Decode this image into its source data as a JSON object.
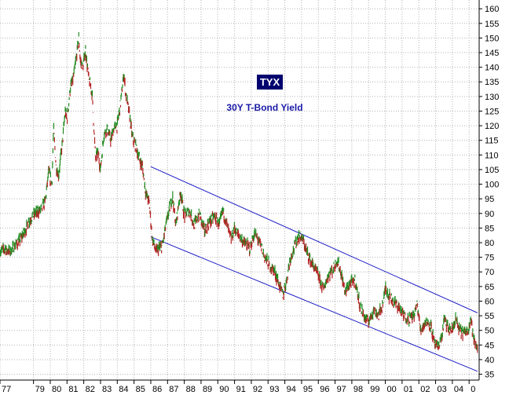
{
  "chart_data": {
    "type": "line",
    "title": "TYX",
    "subtitle": "30Y T-Bond Yield",
    "xlabel": "",
    "ylabel": "",
    "ylim": [
      33,
      163
    ],
    "xlim": [
      1977.0,
      2005.6
    ],
    "y_ticks": [
      35,
      40,
      45,
      50,
      55,
      60,
      65,
      70,
      75,
      80,
      85,
      90,
      95,
      100,
      105,
      110,
      115,
      120,
      125,
      130,
      135,
      140,
      145,
      150,
      155,
      160
    ],
    "x_ticks": [
      {
        "label": "77",
        "x": 1977.0
      },
      {
        "label": "79",
        "x": 1979.0
      },
      {
        "label": "80",
        "x": 1980.0
      },
      {
        "label": "81",
        "x": 1981.0
      },
      {
        "label": "82",
        "x": 1982.0
      },
      {
        "label": "83",
        "x": 1983.0
      },
      {
        "label": "84",
        "x": 1984.0
      },
      {
        "label": "85",
        "x": 1985.0
      },
      {
        "label": "86",
        "x": 1986.0
      },
      {
        "label": "87",
        "x": 1987.0
      },
      {
        "label": "88",
        "x": 1988.0
      },
      {
        "label": "89",
        "x": 1989.0
      },
      {
        "label": "90",
        "x": 1990.0
      },
      {
        "label": "91",
        "x": 1991.0
      },
      {
        "label": "92",
        "x": 1992.0
      },
      {
        "label": "93",
        "x": 1993.0
      },
      {
        "label": "94",
        "x": 1994.0
      },
      {
        "label": "95",
        "x": 1995.0
      },
      {
        "label": "96",
        "x": 1996.0
      },
      {
        "label": "97",
        "x": 1997.0
      },
      {
        "label": "98",
        "x": 1998.0
      },
      {
        "label": "99",
        "x": 1999.0
      },
      {
        "label": "00",
        "x": 2000.0
      },
      {
        "label": "01",
        "x": 2001.0
      },
      {
        "label": "02",
        "x": 2002.0
      },
      {
        "label": "03",
        "x": 2003.0
      },
      {
        "label": "04",
        "x": 2004.0
      },
      {
        "label": "0",
        "x": 2005.0
      }
    ],
    "grid": true,
    "series": [
      {
        "color_up": "#1f8a1f",
        "color_down": "#b22222",
        "x": [
          1977.0,
          1977.3,
          1977.6,
          1977.9,
          1978.2,
          1978.5,
          1978.8,
          1979.1,
          1979.4,
          1979.7,
          1979.9,
          1980.1,
          1980.2,
          1980.35,
          1980.5,
          1980.7,
          1980.9,
          1981.0,
          1981.2,
          1981.4,
          1981.55,
          1981.7,
          1981.8,
          1981.95,
          1982.1,
          1982.3,
          1982.5,
          1982.7,
          1982.85,
          1983.0,
          1983.2,
          1983.4,
          1983.6,
          1983.8,
          1984.0,
          1984.2,
          1984.4,
          1984.5,
          1984.7,
          1984.9,
          1985.1,
          1985.3,
          1985.5,
          1985.7,
          1985.9,
          1986.1,
          1986.3,
          1986.5,
          1986.7,
          1986.9,
          1987.1,
          1987.3,
          1987.5,
          1987.7,
          1987.8,
          1988.0,
          1988.3,
          1988.6,
          1988.9,
          1989.2,
          1989.5,
          1989.8,
          1990.1,
          1990.3,
          1990.6,
          1990.8,
          1991.0,
          1991.3,
          1991.6,
          1991.9,
          1992.2,
          1992.5,
          1992.8,
          1993.1,
          1993.4,
          1993.7,
          1993.9,
          1994.1,
          1994.3,
          1994.6,
          1994.8,
          1995.0,
          1995.3,
          1995.6,
          1995.9,
          1996.1,
          1996.3,
          1996.6,
          1996.9,
          1997.1,
          1997.3,
          1997.6,
          1997.9,
          1998.2,
          1998.5,
          1998.8,
          1999.0,
          1999.3,
          1999.6,
          1999.9,
          2000.0,
          2000.2,
          2000.5,
          2000.8,
          2001.1,
          2001.4,
          2001.7,
          2001.9,
          2002.1,
          2002.4,
          2002.7,
          2002.9,
          2003.1,
          2003.4,
          2003.5,
          2003.8,
          2004.0,
          2004.2,
          2004.4,
          2004.7,
          2004.9,
          2005.1,
          2005.3,
          2005.5
        ],
        "y": [
          77,
          78,
          77,
          79,
          81,
          84,
          88,
          90,
          91,
          94,
          104,
          100,
          119,
          106,
          103,
          113,
          125,
          122,
          133,
          137,
          143,
          150,
          142,
          140,
          146,
          136,
          131,
          109,
          111,
          105,
          117,
          119,
          115,
          119,
          120,
          128,
          138,
          131,
          125,
          116,
          113,
          109,
          106,
          97,
          94,
          81,
          77,
          78,
          79,
          86,
          91,
          96,
          86,
          95,
          97,
          89,
          91,
          86,
          90,
          84,
          87,
          89,
          86,
          91,
          85,
          81,
          85,
          82,
          80,
          78,
          83,
          80,
          75,
          72,
          70,
          65,
          62,
          67,
          74,
          79,
          82,
          82,
          77,
          73,
          70,
          67,
          64,
          69,
          71,
          74,
          71,
          63,
          66,
          67,
          58,
          54,
          53,
          57,
          55,
          60,
          65,
          62,
          60,
          58,
          55,
          54,
          55,
          59,
          50,
          53,
          52,
          46,
          44,
          48,
          54,
          50,
          50,
          54,
          50,
          49,
          50,
          54,
          46,
          44
        ]
      }
    ],
    "trend_channel": {
      "upper": [
        [
          1986.0,
          106
        ],
        [
          2005.5,
          56
        ]
      ],
      "lower": [
        [
          1986.0,
          82
        ],
        [
          2005.5,
          36
        ]
      ],
      "color": "#1c1cc8"
    }
  }
}
